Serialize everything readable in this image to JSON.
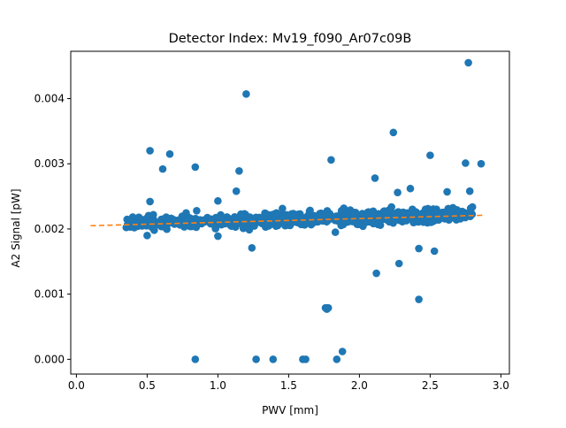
{
  "chart_data": {
    "type": "scatter",
    "title": "Detector Index: Mv19_f090_Ar07c09B",
    "xlabel": "PWV [mm]",
    "ylabel": "A2 Signal [pW]",
    "xlim": [
      -0.04,
      3.06
    ],
    "ylim": [
      -0.000226,
      0.004726
    ],
    "xticks": [
      {
        "value": 0.0,
        "label": "0.0"
      },
      {
        "value": 0.5,
        "label": "0.5"
      },
      {
        "value": 1.0,
        "label": "1.0"
      },
      {
        "value": 1.5,
        "label": "1.5"
      },
      {
        "value": 2.0,
        "label": "2.0"
      },
      {
        "value": 2.5,
        "label": "2.5"
      },
      {
        "value": 3.0,
        "label": "3.0"
      }
    ],
    "yticks": [
      {
        "value": 0.0,
        "label": "0.000"
      },
      {
        "value": 0.001,
        "label": "0.001"
      },
      {
        "value": 0.002,
        "label": "0.002"
      },
      {
        "value": 0.003,
        "label": "0.003"
      },
      {
        "value": 0.004,
        "label": "0.004"
      }
    ],
    "point_color": "#1f77b4",
    "fit_color": "#ff7f0e",
    "outliers": [
      [
        0.52,
        0.0032
      ],
      [
        0.61,
        0.00292
      ],
      [
        0.66,
        0.00315
      ],
      [
        0.84,
        0.00295
      ],
      [
        1.15,
        0.00289
      ],
      [
        1.2,
        0.00407
      ],
      [
        1.13,
        0.00258
      ],
      [
        1.24,
        0.00171
      ],
      [
        1.8,
        0.00306
      ],
      [
        1.83,
        0.00195
      ],
      [
        2.11,
        0.00278
      ],
      [
        2.12,
        0.00132
      ],
      [
        2.24,
        0.00348
      ],
      [
        2.27,
        0.00256
      ],
      [
        2.28,
        0.00147
      ],
      [
        2.36,
        0.00262
      ],
      [
        2.42,
        0.00092
      ],
      [
        2.42,
        0.0017
      ],
      [
        2.5,
        0.00313
      ],
      [
        2.53,
        0.00166
      ],
      [
        2.62,
        0.00257
      ],
      [
        2.75,
        0.00301
      ],
      [
        2.77,
        0.00455
      ],
      [
        2.78,
        0.00258
      ],
      [
        2.86,
        0.003
      ],
      [
        0.5,
        0.0019
      ],
      [
        0.85,
        0.00228
      ],
      [
        1.0,
        0.00243
      ],
      [
        1.0,
        0.00189
      ],
      [
        0.52,
        0.00242
      ],
      [
        1.76,
        0.00079
      ],
      [
        1.77,
        0.00079
      ],
      [
        1.78,
        0.00079
      ],
      [
        1.77,
        0.00077
      ],
      [
        0.84,
        0.0
      ],
      [
        1.27,
        0.0
      ],
      [
        1.39,
        0.0
      ],
      [
        1.6,
        0.0
      ],
      [
        1.62,
        0.0
      ],
      [
        1.84,
        0.0
      ],
      [
        1.88,
        0.00012
      ]
    ],
    "cluster": {
      "x_range": [
        0.35,
        2.8
      ],
      "n_points": 700,
      "center_intercept": 0.00205,
      "center_slope": 5.75e-05,
      "typical_spread": 0.00011
    },
    "fit_line": {
      "x": [
        0.1,
        2.87
      ],
      "y": [
        0.00205,
        0.00221
      ],
      "style": "dashed"
    }
  }
}
